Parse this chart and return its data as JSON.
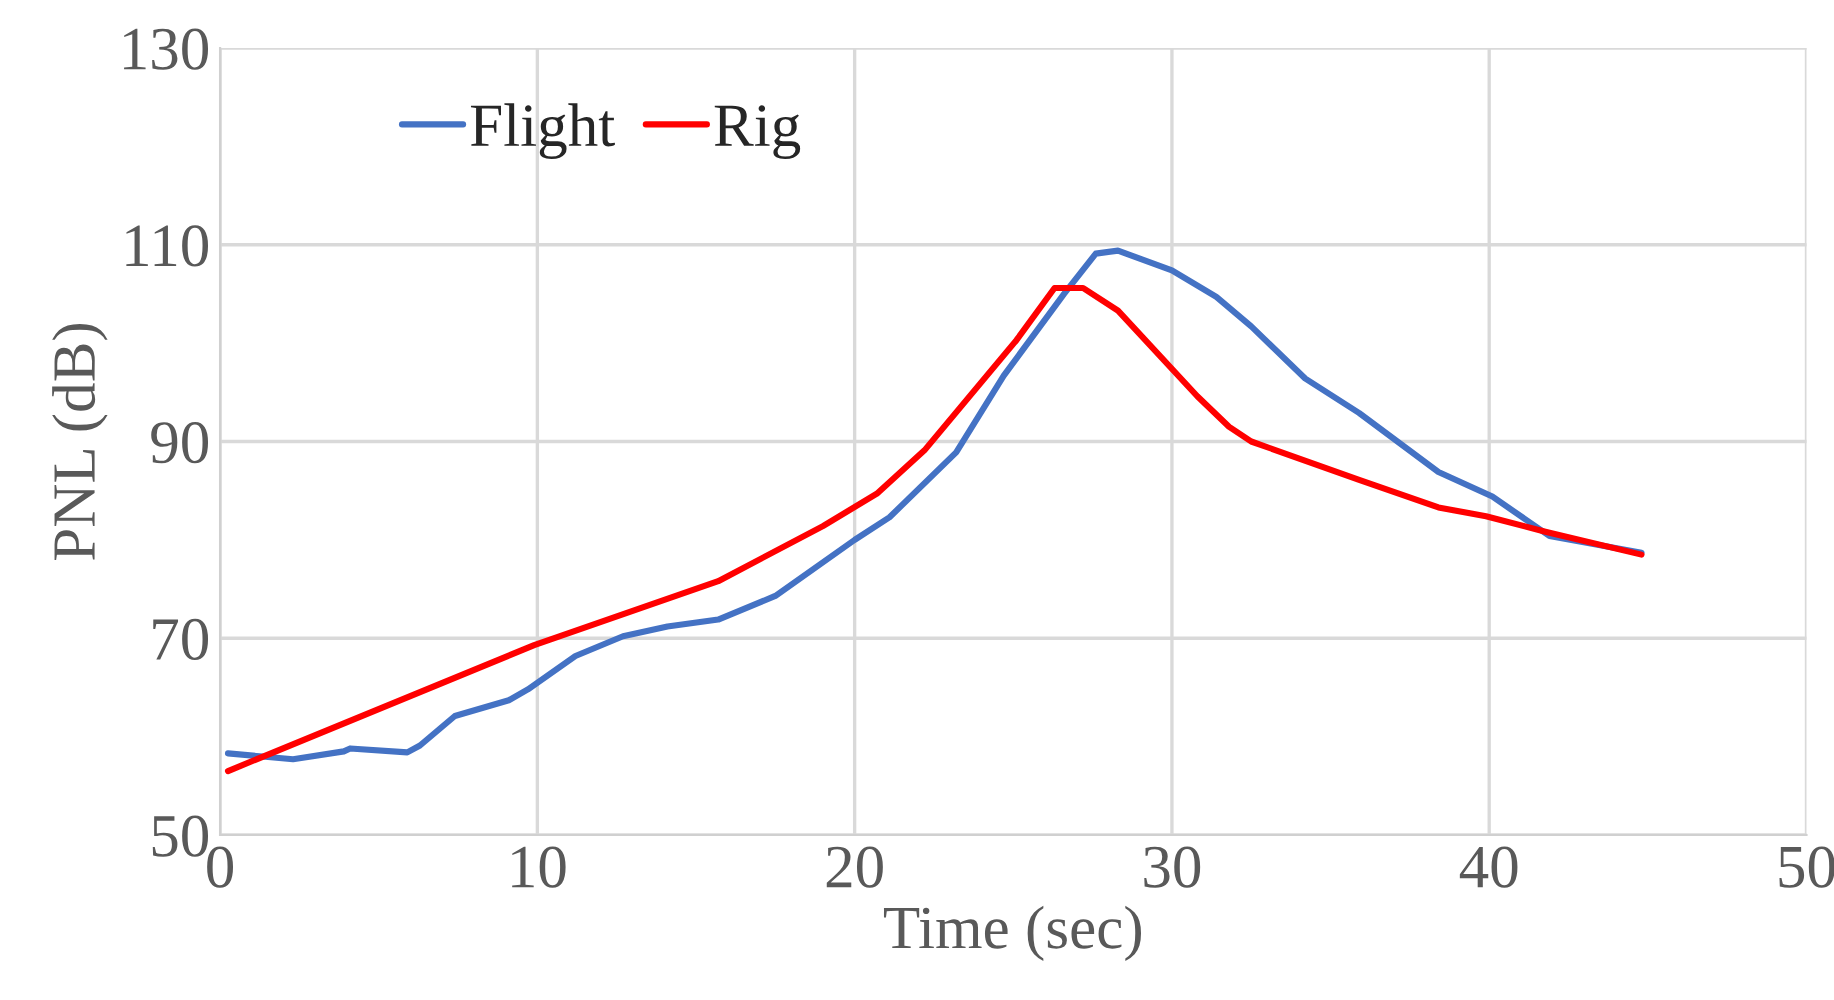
{
  "chart_data": {
    "type": "line",
    "xlabel": "Time (sec)",
    "ylabel": "PNL (dB)",
    "xlim": [
      0,
      50
    ],
    "xticks": [
      0,
      10,
      20,
      30,
      40,
      50
    ],
    "ylim": [
      50,
      130
    ],
    "yticks": [
      50,
      70,
      90,
      110,
      130
    ],
    "grid": true,
    "legend": "top left",
    "marker": "none",
    "line_style": "solid",
    "series": [
      {
        "name": "Flight",
        "color": "#4472c4",
        "x": [
          0.25,
          2.3,
          3.9,
          4.1,
          5.9,
          6.3,
          7.4,
          9.1,
          9.7,
          11.2,
          12.7,
          14.1,
          15.7,
          17.5,
          20.0,
          21.1,
          23.2,
          24.7,
          26.6,
          27.6,
          28.3,
          30.0,
          31.4,
          32.5,
          34.2,
          35.9,
          38.4,
          40.1,
          41.9,
          44.8
        ],
        "values": [
          58.3,
          57.7,
          58.5,
          58.8,
          58.4,
          59.1,
          62.1,
          63.7,
          64.8,
          68.2,
          70.2,
          71.2,
          71.9,
          74.3,
          80.0,
          82.3,
          88.9,
          96.7,
          105.0,
          109.1,
          109.4,
          107.4,
          104.7,
          101.7,
          96.4,
          92.9,
          86.9,
          84.4,
          80.4,
          78.7
        ]
      },
      {
        "name": "Rig",
        "color": "#ff0000",
        "x": [
          0.25,
          9.9,
          15.7,
          19.0,
          20.7,
          22.2,
          25.1,
          26.3,
          27.2,
          28.3,
          30.8,
          31.8,
          32.5,
          35.9,
          38.4,
          39.9,
          41.8,
          44.8
        ],
        "values": [
          56.5,
          69.3,
          75.8,
          81.4,
          84.7,
          89.1,
          100.3,
          105.6,
          105.6,
          103.3,
          94.6,
          91.5,
          90.0,
          86.1,
          83.3,
          82.4,
          80.8,
          78.5
        ]
      }
    ]
  }
}
